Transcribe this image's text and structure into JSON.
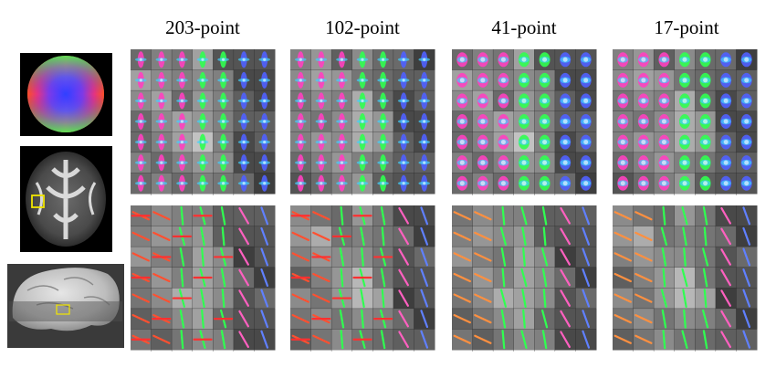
{
  "figure": {
    "column_titles": [
      "203-point",
      "102-point",
      "41-point",
      "17-point"
    ],
    "colors": {
      "background": "#ffffff",
      "roi_box": "#f2e600",
      "grid_line": "#222222"
    },
    "insets": [
      {
        "name": "color-sphere",
        "description_icon": "orientation-color-sphere-icon"
      },
      {
        "name": "axial-fa-slice",
        "description_icon": "brain-slice-icon"
      },
      {
        "name": "3d-brain-render",
        "description_icon": "brain-surface-icon"
      }
    ]
  }
}
